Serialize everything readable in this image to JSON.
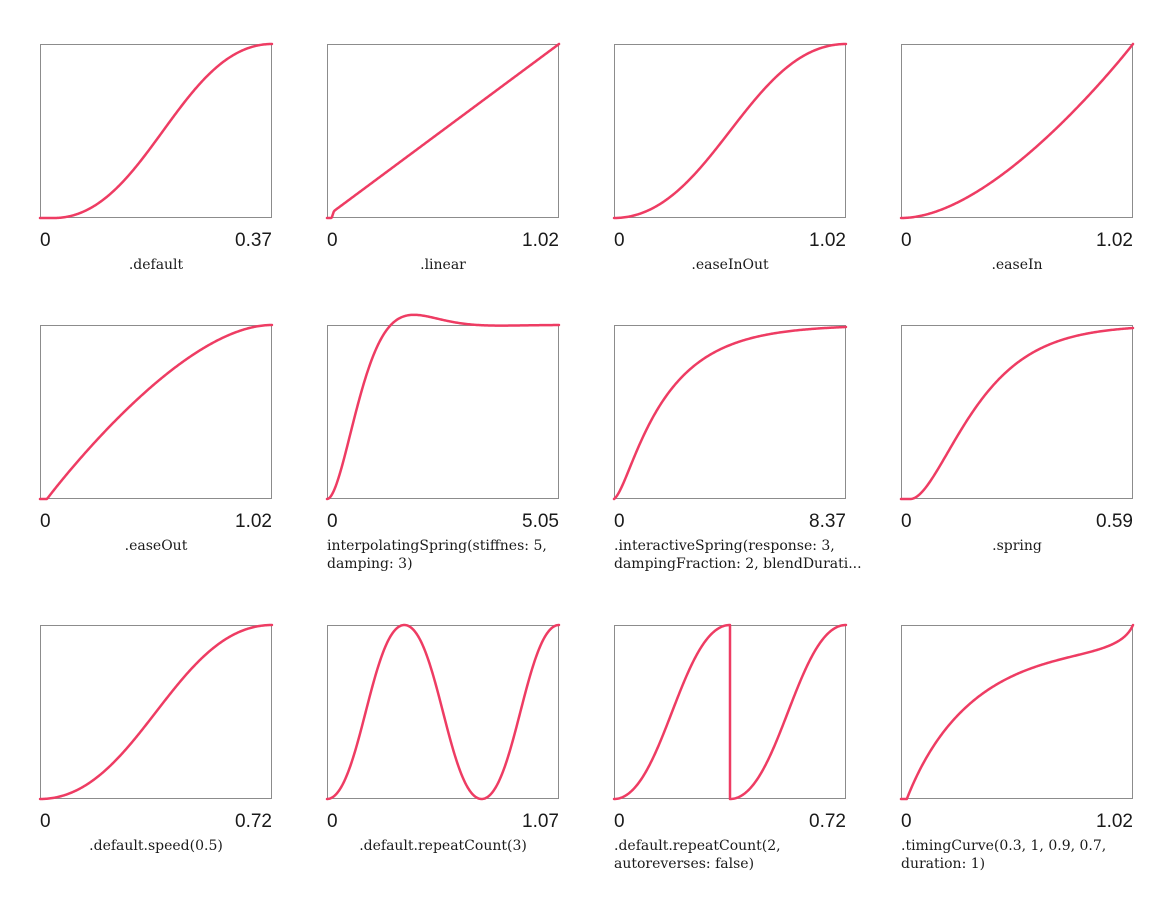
{
  "style": {
    "curve_color": "#ee3c63",
    "frame_color": "#8c8c8c"
  },
  "chart_data": [
    {
      "type": "line",
      "title": ".default",
      "x_start": "0",
      "x_end": "0.37",
      "curve": "easeDefault"
    },
    {
      "type": "line",
      "title": ".linear",
      "x_start": "0",
      "x_end": "1.02",
      "curve": "linear"
    },
    {
      "type": "line",
      "title": ".easeInOut",
      "x_start": "0",
      "x_end": "1.02",
      "curve": "easeInOut"
    },
    {
      "type": "line",
      "title": ".easeIn",
      "x_start": "0",
      "x_end": "1.02",
      "curve": "easeIn"
    },
    {
      "type": "line",
      "title": ".easeOut",
      "x_start": "0",
      "x_end": "1.02",
      "curve": "easeOut"
    },
    {
      "type": "line",
      "title": "interpolatingSpring(stiffnes: 5, damping: 3)",
      "x_start": "0",
      "x_end": "5.05",
      "curve": "interpolatingSpring"
    },
    {
      "type": "line",
      "title": ".interactiveSpring(response: 3, dampingFraction: 2, blendDurati...",
      "x_start": "0",
      "x_end": "8.37",
      "curve": "interactiveSpring"
    },
    {
      "type": "line",
      "title": ".spring",
      "x_start": "0",
      "x_end": "0.59",
      "curve": "spring"
    },
    {
      "type": "line",
      "title": ".default.speed(0.5)",
      "x_start": "0",
      "x_end": "0.72",
      "curve": "easeDefaultSlow"
    },
    {
      "type": "line",
      "title": ".default.repeatCount(3)",
      "x_start": "0",
      "x_end": "1.07",
      "curve": "repeat3"
    },
    {
      "type": "line",
      "title": ".default.repeatCount(2, autoreverses: false)",
      "x_start": "0",
      "x_end": "0.72",
      "curve": "repeat2NoReverse"
    },
    {
      "type": "line",
      "title": ".timingCurve(0.3, 1, 0.9, 0.7, duration: 1)",
      "x_start": "0",
      "x_end": "1.02",
      "curve": "timingCurve"
    }
  ]
}
